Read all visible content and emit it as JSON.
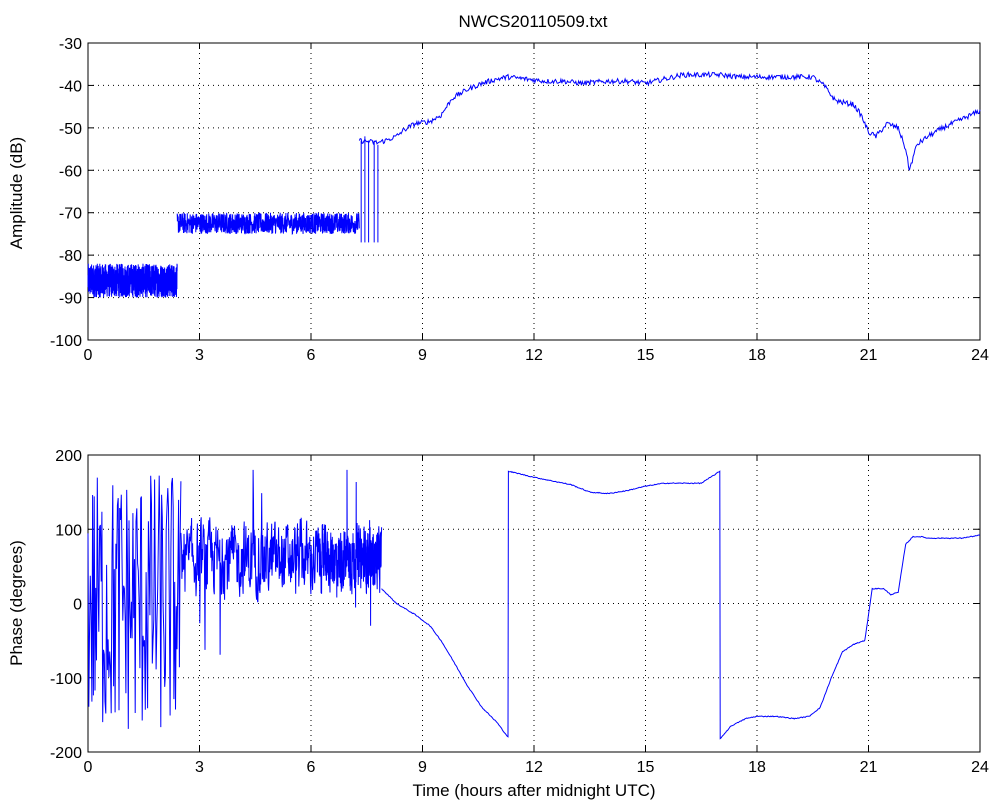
{
  "figure": {
    "title": "NWCS20110509.txt"
  },
  "chart_data": [
    {
      "type": "line",
      "title": "NWCS20110509.txt",
      "xlabel": "",
      "ylabel": "Amplitude (dB)",
      "xlim": [
        0,
        24
      ],
      "ylim": [
        -100,
        -30
      ],
      "xticks": [
        0,
        3,
        6,
        9,
        12,
        15,
        18,
        21,
        24
      ],
      "yticks": [
        -100,
        -90,
        -80,
        -70,
        -60,
        -50,
        -40,
        -30
      ],
      "grid": true,
      "color": "#0000ff",
      "series": [
        {
          "segments": [
            {
              "x": [
                0,
                2.4
              ],
              "y_mean": -86,
              "y_noise": 4
            },
            {
              "x": [
                2.4,
                7.3
              ],
              "y_mean": -72.5,
              "y_noise": 2.5
            }
          ],
          "spikes": [
            {
              "x": 7.35,
              "y": [
                -77,
                -53
              ]
            },
            {
              "x": 7.45,
              "y": [
                -77,
                -52
              ]
            },
            {
              "x": 7.55,
              "y": [
                -77,
                -53
              ]
            },
            {
              "x": 7.7,
              "y": [
                -77,
                -53
              ]
            },
            {
              "x": 7.8,
              "y": [
                -77,
                -54
              ]
            }
          ],
          "x": [
            7.3,
            7.8,
            8.0,
            8.3,
            8.5,
            8.8,
            9.2,
            9.5,
            9.8,
            10.2,
            10.6,
            11.0,
            11.3,
            11.8,
            12.3,
            12.8,
            13.3,
            14.0,
            14.5,
            15.0,
            15.5,
            16.0,
            16.5,
            17.0,
            17.5,
            18.0,
            18.5,
            19.0,
            19.5,
            19.8,
            20.1,
            20.3,
            20.6,
            20.8,
            21.0,
            21.2,
            21.5,
            21.8,
            22.0,
            22.1,
            22.3,
            22.6,
            23.0,
            23.5,
            24.0
          ],
          "y": [
            -53,
            -53.5,
            -53,
            -52,
            -50.5,
            -49,
            -48.5,
            -47,
            -43,
            -41,
            -39.5,
            -38.5,
            -38,
            -38.5,
            -39,
            -39,
            -39.5,
            -39,
            -39,
            -39.5,
            -38.5,
            -37.5,
            -37.5,
            -37.5,
            -38,
            -38,
            -38,
            -38,
            -38,
            -40,
            -43.5,
            -44,
            -44.5,
            -47,
            -51,
            -52,
            -49,
            -50,
            -55,
            -60,
            -54,
            -52,
            -50,
            -48,
            -46
          ]
        }
      ]
    },
    {
      "type": "line",
      "title": "",
      "xlabel": "Time (hours after midnight UTC)",
      "ylabel": "Phase (degrees)",
      "xlim": [
        0,
        24
      ],
      "ylim": [
        -200,
        200
      ],
      "xticks": [
        0,
        3,
        6,
        9,
        12,
        15,
        18,
        21,
        24
      ],
      "yticks": [
        -200,
        -100,
        0,
        100,
        200
      ],
      "grid": true,
      "color": "#0000ff",
      "series": [
        {
          "noisy_segments": [
            {
              "x": [
                0,
                2.5
              ],
              "y": [
                -180,
                180
              ],
              "style": "wrap"
            },
            {
              "x": [
                2.5,
                6.2
              ],
              "y_mean": 60,
              "y_noise": 70
            },
            {
              "x": [
                6.2,
                7.9
              ],
              "y_mean": 60,
              "y_noise": 60
            }
          ],
          "x": [
            7.9,
            8.3,
            8.8,
            9.2,
            9.5,
            9.8,
            10.2,
            10.6,
            11.0,
            11.3,
            11.31,
            11.5,
            12.0,
            12.5,
            13.0,
            13.5,
            14.0,
            14.5,
            15.0,
            15.5,
            16.0,
            16.5,
            17.0,
            17.01,
            17.3,
            17.7,
            18.0,
            18.5,
            19.0,
            19.4,
            19.7,
            20.0,
            20.3,
            20.6,
            20.9,
            21.1,
            21.4,
            21.6,
            21.8,
            22.0,
            22.2,
            22.4,
            22.6,
            23.0,
            23.5,
            24.0
          ],
          "y": [
            20,
            0,
            -15,
            -30,
            -50,
            -75,
            -110,
            -140,
            -160,
            -180,
            178,
            176,
            170,
            165,
            160,
            150,
            148,
            152,
            158,
            162,
            162,
            162,
            178,
            -182,
            -165,
            -155,
            -152,
            -152,
            -155,
            -152,
            -140,
            -100,
            -65,
            -55,
            -50,
            20,
            20,
            12,
            15,
            80,
            90,
            90,
            88,
            88,
            88,
            92
          ]
        }
      ]
    }
  ]
}
